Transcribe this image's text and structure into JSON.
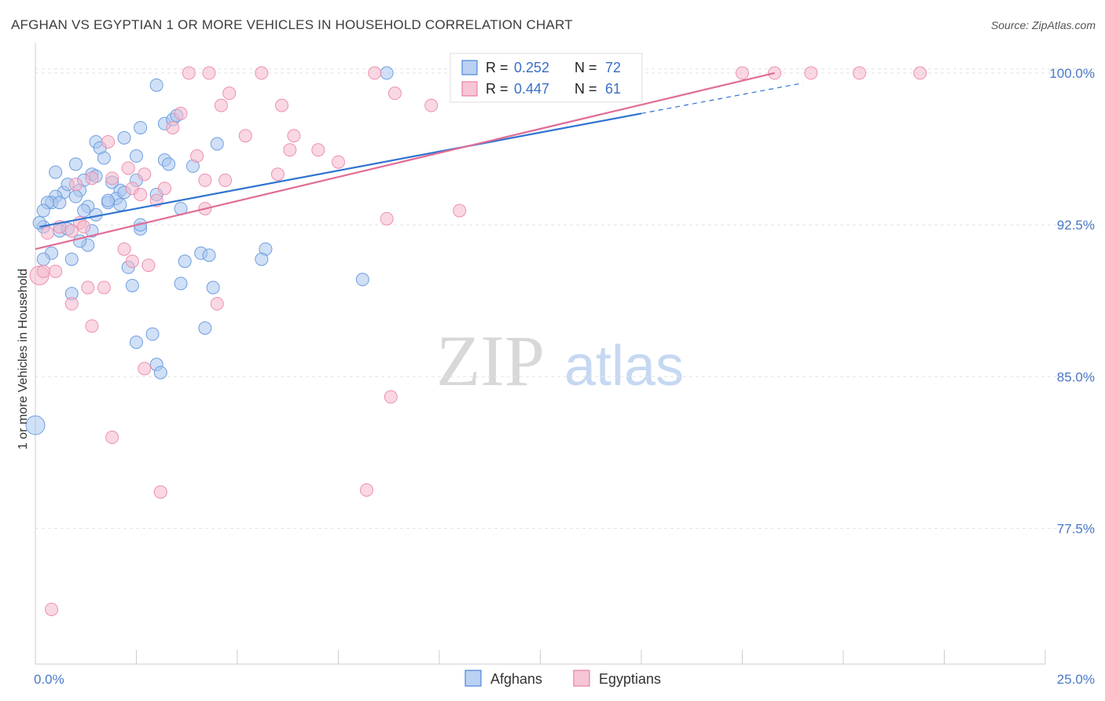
{
  "title": "AFGHAN VS EGYPTIAN 1 OR MORE VEHICLES IN HOUSEHOLD CORRELATION CHART",
  "source": "Source: ZipAtlas.com",
  "watermark": {
    "zip": "ZIP",
    "atlas": "atlas"
  },
  "legend": {
    "r_label": "R =",
    "n_label": "N =",
    "rows": [
      {
        "r": "0.252",
        "n": "72",
        "color": "#a9c6ef"
      },
      {
        "r": "0.447",
        "n": "61",
        "color": "#f4b8cc"
      }
    ]
  },
  "bottom_legend": [
    {
      "label": "Afghans",
      "color": "#a9c6ef"
    },
    {
      "label": "Egyptians",
      "color": "#f4b8cc"
    }
  ],
  "chart_data": {
    "type": "scatter",
    "title": "AFGHAN VS EGYPTIAN 1 OR MORE VEHICLES IN HOUSEHOLD CORRELATION CHART",
    "xlabel": "",
    "ylabel": "1 or more Vehicles in Household",
    "xlim": [
      0,
      25
    ],
    "ylim": [
      70.8,
      101.2
    ],
    "x_tick_labels": [
      "0.0%",
      "25.0%"
    ],
    "y_ticks": [
      77.5,
      85.0,
      92.5,
      100.0
    ],
    "y_tick_labels": [
      "77.5%",
      "85.0%",
      "92.5%",
      "100.0%"
    ],
    "grid": true,
    "legend_position": "top-center",
    "series": [
      {
        "name": "Afghans",
        "color": "#6f9fe0",
        "fill": "#a9c6ef",
        "stroke": "#2f74d0",
        "trend": {
          "x": [
            0.1,
            15.0
          ],
          "y": [
            92.4,
            98.0
          ],
          "dash_to": [
            19.0,
            100.1
          ]
        },
        "points": [
          [
            8.7,
            100.0
          ],
          [
            11.7,
            100.0
          ],
          [
            3.0,
            99.4
          ],
          [
            3.2,
            97.5
          ],
          [
            2.6,
            97.3
          ],
          [
            3.4,
            97.7
          ],
          [
            3.5,
            97.9
          ],
          [
            2.2,
            96.8
          ],
          [
            1.5,
            96.6
          ],
          [
            4.5,
            96.5
          ],
          [
            1.6,
            96.3
          ],
          [
            2.5,
            95.9
          ],
          [
            1.7,
            95.8
          ],
          [
            3.2,
            95.7
          ],
          [
            1.0,
            95.5
          ],
          [
            3.3,
            95.5
          ],
          [
            3.9,
            95.4
          ],
          [
            0.5,
            95.1
          ],
          [
            1.4,
            95.0
          ],
          [
            1.5,
            94.9
          ],
          [
            1.2,
            94.7
          ],
          [
            1.9,
            94.6
          ],
          [
            2.5,
            94.7
          ],
          [
            1.1,
            94.2
          ],
          [
            2.1,
            94.2
          ],
          [
            0.7,
            94.1
          ],
          [
            1.0,
            93.9
          ],
          [
            0.5,
            93.9
          ],
          [
            2.0,
            93.8
          ],
          [
            0.4,
            93.6
          ],
          [
            0.3,
            93.6
          ],
          [
            0.6,
            93.6
          ],
          [
            1.3,
            93.4
          ],
          [
            1.8,
            93.6
          ],
          [
            2.1,
            93.5
          ],
          [
            3.6,
            93.3
          ],
          [
            1.2,
            93.2
          ],
          [
            0.2,
            92.4
          ],
          [
            0.6,
            92.2
          ],
          [
            1.4,
            92.2
          ],
          [
            2.6,
            92.3
          ],
          [
            0.8,
            92.3
          ],
          [
            0.1,
            92.6
          ],
          [
            1.3,
            91.5
          ],
          [
            1.1,
            91.7
          ],
          [
            0.4,
            91.1
          ],
          [
            5.7,
            91.3
          ],
          [
            4.1,
            91.1
          ],
          [
            4.3,
            91.0
          ],
          [
            0.2,
            90.8
          ],
          [
            0.9,
            90.8
          ],
          [
            3.7,
            90.7
          ],
          [
            5.6,
            90.8
          ],
          [
            2.3,
            90.4
          ],
          [
            2.4,
            89.5
          ],
          [
            3.6,
            89.6
          ],
          [
            4.4,
            89.4
          ],
          [
            8.1,
            89.8
          ],
          [
            0.9,
            89.1
          ],
          [
            4.2,
            87.4
          ],
          [
            2.9,
            87.1
          ],
          [
            2.5,
            86.7
          ],
          [
            3.0,
            85.6
          ],
          [
            3.1,
            85.2
          ],
          [
            0.0,
            82.6
          ],
          [
            1.8,
            93.7
          ],
          [
            0.2,
            93.2
          ],
          [
            2.6,
            92.5
          ],
          [
            1.5,
            93.0
          ],
          [
            0.8,
            94.5
          ],
          [
            3.0,
            94.0
          ],
          [
            2.2,
            94.1
          ]
        ]
      },
      {
        "name": "Egyptians",
        "color": "#ee8fb0",
        "fill": "#f4b8cc",
        "stroke": "#e06d96",
        "trend": {
          "x": [
            0.0,
            18.3
          ],
          "y": [
            91.3,
            100.0
          ]
        },
        "points": [
          [
            3.8,
            100.0
          ],
          [
            4.3,
            100.0
          ],
          [
            5.6,
            100.0
          ],
          [
            8.4,
            100.0
          ],
          [
            13.5,
            100.0
          ],
          [
            17.5,
            100.0
          ],
          [
            18.3,
            100.0
          ],
          [
            19.2,
            100.0
          ],
          [
            20.4,
            100.0
          ],
          [
            21.9,
            100.0
          ],
          [
            8.9,
            99.0
          ],
          [
            4.8,
            99.0
          ],
          [
            9.8,
            98.4
          ],
          [
            4.6,
            98.4
          ],
          [
            6.1,
            98.4
          ],
          [
            3.6,
            98.0
          ],
          [
            3.4,
            97.3
          ],
          [
            6.4,
            96.9
          ],
          [
            5.2,
            96.9
          ],
          [
            1.8,
            96.6
          ],
          [
            7.0,
            96.2
          ],
          [
            6.3,
            96.2
          ],
          [
            4.0,
            95.9
          ],
          [
            7.5,
            95.6
          ],
          [
            2.3,
            95.3
          ],
          [
            2.7,
            95.0
          ],
          [
            6.0,
            95.0
          ],
          [
            1.4,
            94.8
          ],
          [
            1.9,
            94.8
          ],
          [
            4.2,
            94.7
          ],
          [
            4.7,
            94.7
          ],
          [
            1.0,
            94.5
          ],
          [
            2.4,
            94.3
          ],
          [
            2.6,
            94.0
          ],
          [
            3.0,
            93.7
          ],
          [
            4.2,
            93.3
          ],
          [
            10.5,
            93.2
          ],
          [
            8.7,
            92.8
          ],
          [
            0.6,
            92.4
          ],
          [
            1.1,
            92.6
          ],
          [
            0.9,
            92.2
          ],
          [
            0.3,
            92.1
          ],
          [
            2.2,
            91.3
          ],
          [
            2.4,
            90.7
          ],
          [
            2.8,
            90.5
          ],
          [
            0.5,
            90.2
          ],
          [
            0.1,
            90.0
          ],
          [
            1.3,
            89.4
          ],
          [
            1.7,
            89.4
          ],
          [
            0.9,
            88.6
          ],
          [
            4.5,
            88.6
          ],
          [
            1.4,
            87.5
          ],
          [
            2.7,
            85.4
          ],
          [
            8.8,
            84.0
          ],
          [
            1.9,
            82.0
          ],
          [
            3.1,
            79.3
          ],
          [
            8.2,
            79.4
          ],
          [
            0.4,
            73.5
          ],
          [
            0.2,
            90.2
          ],
          [
            1.2,
            92.4
          ],
          [
            3.2,
            94.3
          ]
        ]
      }
    ]
  }
}
